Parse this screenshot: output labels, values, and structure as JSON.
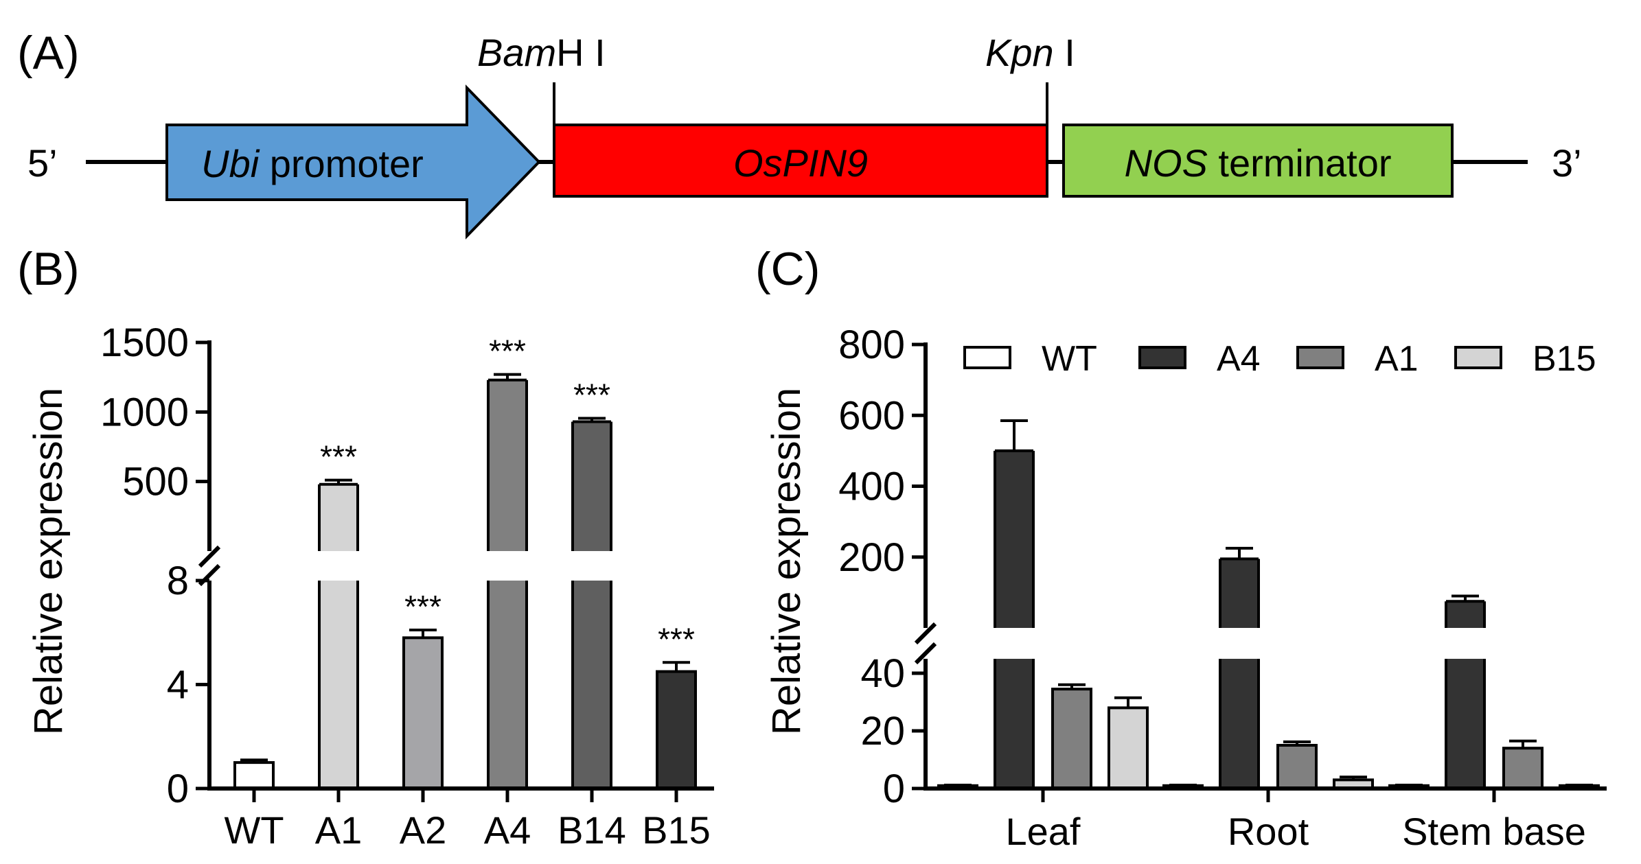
{
  "panel_a": {
    "label": "(A)",
    "five_prime": "5’",
    "three_prime": "3’",
    "site_1": {
      "italic": "Bam",
      "roman": "H I"
    },
    "site_2": {
      "italic": "Kpn",
      "roman": " I"
    },
    "promoter": {
      "italic": "Ubi",
      "roman": " promoter",
      "color": "#5b9bd5"
    },
    "gene": {
      "italic": "OsPIN9",
      "color": "#ff0000"
    },
    "terminator": {
      "italic": "NOS",
      "roman": " terminator",
      "color": "#92d050"
    }
  },
  "chart_data": [
    {
      "panel": "(B)",
      "type": "bar",
      "title": "",
      "xlabel": "",
      "ylabel": "Relative expression",
      "categories": [
        "WT",
        "A1",
        "A2",
        "A4",
        "B14",
        "B15"
      ],
      "values": [
        1.0,
        480,
        5.8,
        1230,
        930,
        4.5
      ],
      "errors": [
        0.1,
        30,
        0.3,
        40,
        25,
        0.35
      ],
      "significance": [
        "",
        "***",
        "***",
        "***",
        "***",
        "***"
      ],
      "bar_colors": [
        "#ffffff",
        "#d4d4d4",
        "#a5a5a8",
        "#808080",
        "#5f5f5f",
        "#333333"
      ],
      "broken_axis": {
        "lower": {
          "range": [
            0,
            8
          ],
          "ticks": [
            0,
            4,
            8
          ]
        },
        "upper": {
          "range": [
            0,
            1500
          ],
          "ticks": [
            500,
            1000,
            1500
          ]
        }
      }
    },
    {
      "panel": "(C)",
      "type": "bar",
      "title": "",
      "xlabel": "",
      "ylabel": "Relative expression",
      "categories": [
        "Leaf",
        "Root",
        "Stem base"
      ],
      "series": [
        {
          "name": "WT",
          "color": "#ffffff",
          "values": [
            1.0,
            1.0,
            1.0
          ],
          "errors": [
            0.2,
            0.2,
            0.2
          ]
        },
        {
          "name": "A4",
          "color": "#333333",
          "values": [
            500,
            195,
            75
          ],
          "errors": [
            85,
            30,
            15
          ]
        },
        {
          "name": "A1",
          "color": "#808080",
          "values": [
            34.5,
            15,
            14
          ],
          "errors": [
            1.5,
            1.2,
            2.5
          ]
        },
        {
          "name": "B15",
          "color": "#d4d4d4",
          "values": [
            28,
            3,
            1.0
          ],
          "errors": [
            3.5,
            1.0,
            0.2
          ]
        }
      ],
      "legend_position": "top",
      "broken_axis": {
        "lower": {
          "range": [
            0,
            45
          ],
          "ticks": [
            0,
            20,
            40
          ]
        },
        "upper": {
          "range": [
            0,
            800
          ],
          "ticks": [
            200,
            400,
            600,
            800
          ]
        }
      }
    }
  ]
}
